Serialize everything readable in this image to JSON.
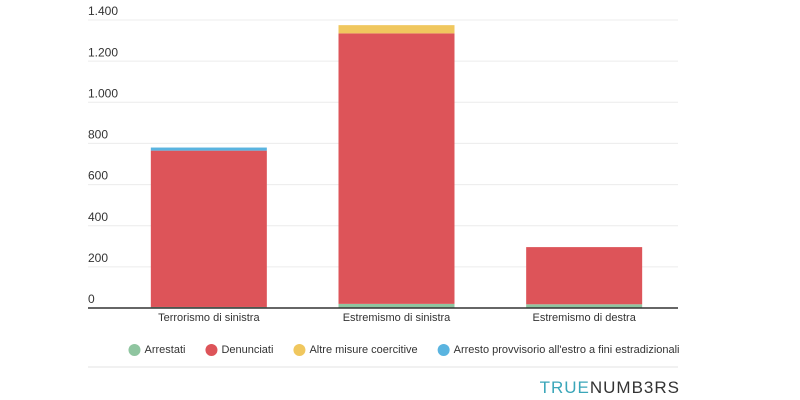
{
  "chart_data": {
    "type": "stacked_bar",
    "categories": [
      "Terrorismo di sinistra",
      "Estremismo di sinistra",
      "Estremismo di destra"
    ],
    "series": [
      {
        "name": "Arrestati",
        "color": "#8fc5a0",
        "values": [
          5,
          20,
          18
        ]
      },
      {
        "name": "Denunciati",
        "color": "#dd5459",
        "values": [
          760,
          1315,
          278
        ]
      },
      {
        "name": "Altre misure coercitive",
        "color": "#f0c75e",
        "values": [
          0,
          40,
          0
        ]
      },
      {
        "name": "Arresto provvisorio all'estro a fini estradizionali",
        "color": "#5ab4e0",
        "values": [
          15,
          0,
          0
        ]
      }
    ],
    "ylim": [
      0,
      1400
    ],
    "yticks": [
      0,
      200,
      400,
      600,
      800,
      {
        "value": 1000,
        "label": "1.000"
      },
      {
        "value": 1200,
        "label": "1.200"
      },
      {
        "value": 1400,
        "label": "1.400"
      }
    ],
    "grid": true,
    "legend": "bottom"
  },
  "brand": [
    "TRUE",
    "NUMB3RS"
  ]
}
